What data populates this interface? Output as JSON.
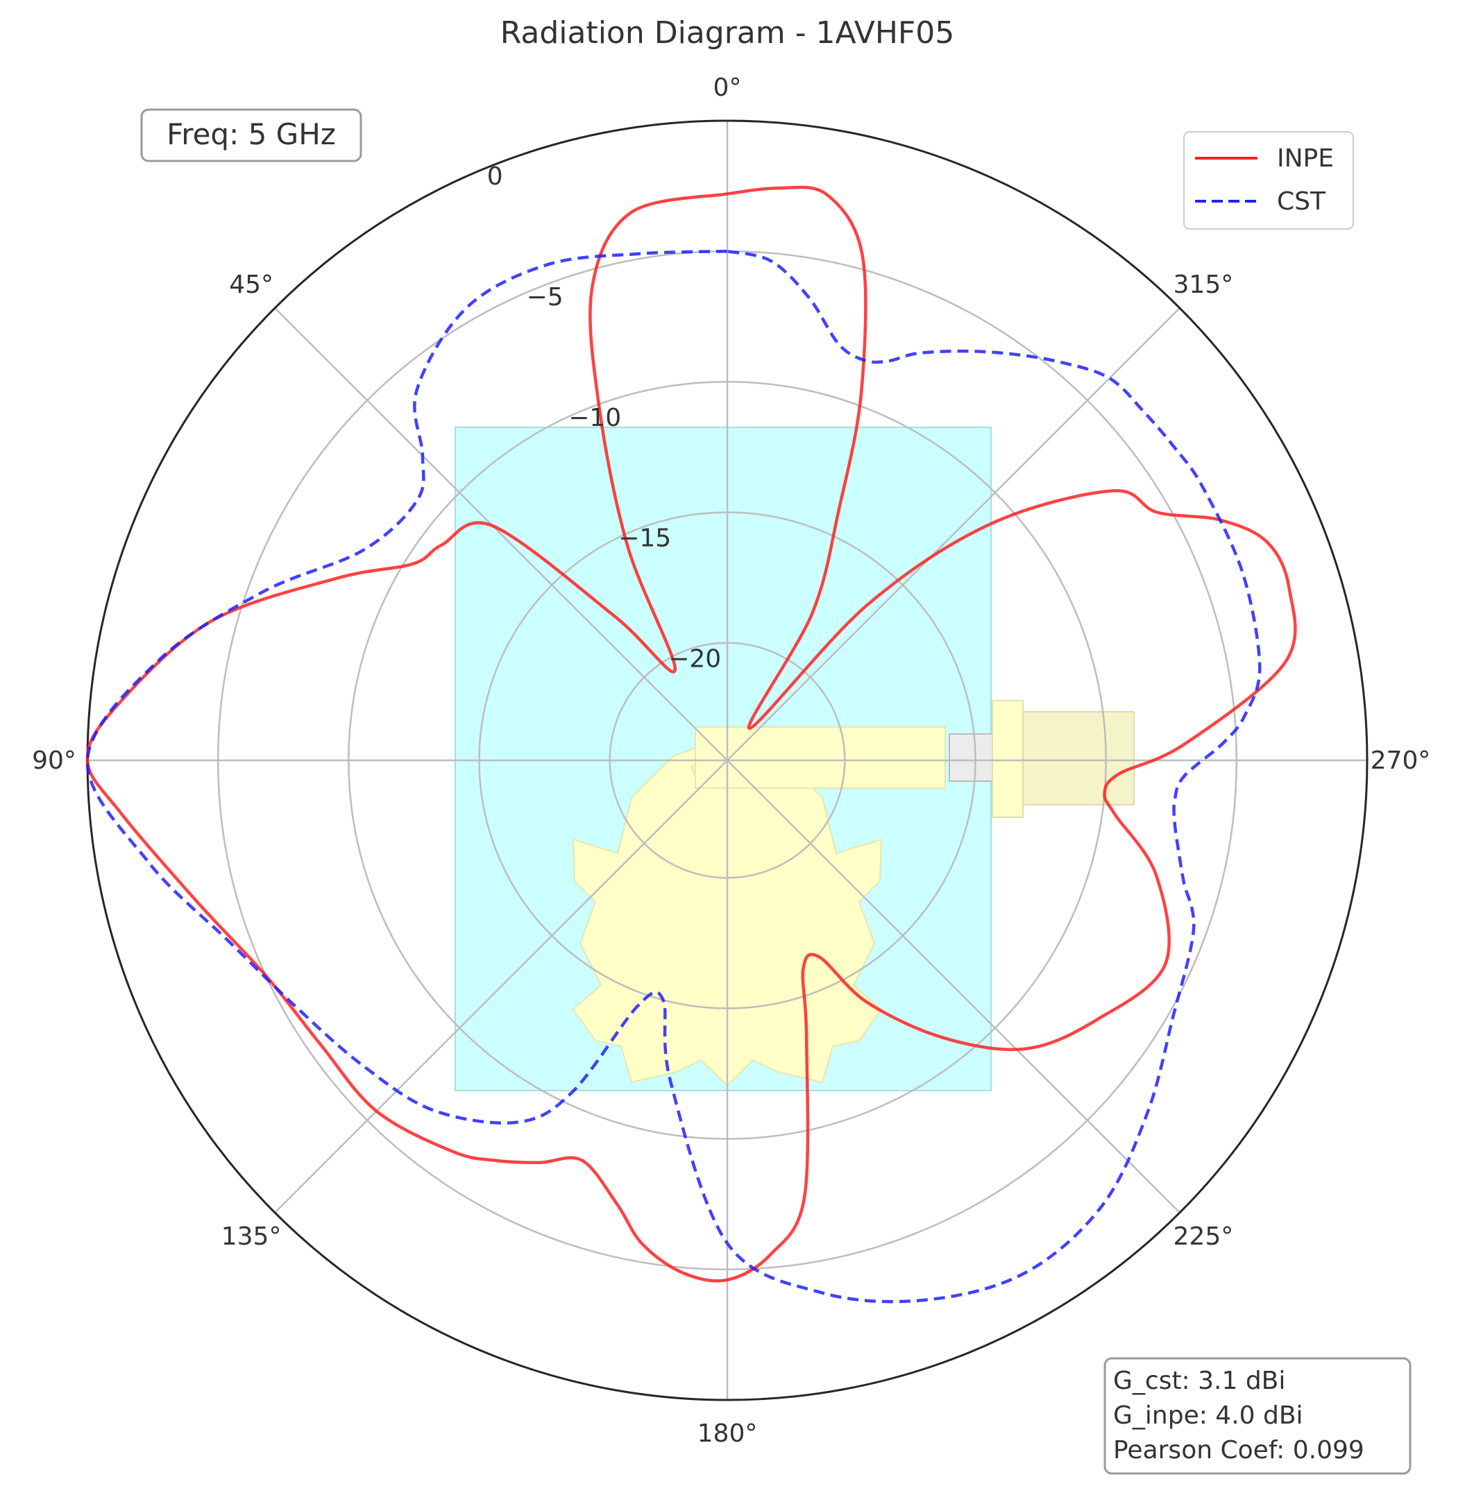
{
  "chart_data": {
    "type": "polar-line",
    "title": "Radiation Diagram - 1AVHF05",
    "theta_direction": "counterclockwise",
    "theta_zero": "top",
    "theta_ticks": [
      "0°",
      "45°",
      "90°",
      "135°",
      "180°",
      "225°",
      "270°",
      "315°"
    ],
    "theta_tick_values": [
      0,
      45,
      90,
      135,
      180,
      225,
      270,
      315
    ],
    "r_range": [
      -24.5,
      0
    ],
    "r_ticks": [
      {
        "value": 0,
        "label": "0"
      },
      {
        "value": -5,
        "label": "−5"
      },
      {
        "value": -10,
        "label": "−10"
      },
      {
        "value": -15,
        "label": "−15"
      },
      {
        "value": -20,
        "label": "−20"
      }
    ],
    "grid": true,
    "legend_position": "top-right",
    "series": [
      {
        "name": "INPE",
        "color": "#ff2020",
        "style": "solid",
        "theta": [
          0,
          10,
          16,
          20,
          25,
          30,
          38,
          45,
          53,
          58,
          65,
          75,
          85,
          90,
          95,
          105,
          115,
          125,
          135,
          145,
          150,
          155,
          160,
          166,
          170,
          175,
          180,
          185,
          190,
          196,
          200,
          205,
          210,
          218,
          226,
          235,
          245,
          255,
          262,
          265,
          268,
          272,
          280,
          287,
          292,
          296,
          300,
          305,
          312,
          318,
          325,
          330,
          336,
          340,
          345,
          350,
          355,
          360
        ],
        "values": [
          -2.8,
          -3.2,
          -5.7,
          -10.2,
          -15.5,
          -20.5,
          -17.5,
          -11.8,
          -10.8,
          -10.3,
          -8.0,
          -4.0,
          -1.0,
          0,
          -1.2,
          -3.5,
          -5.0,
          -5.5,
          -5.5,
          -6.2,
          -6.8,
          -7.5,
          -8.2,
          -7.0,
          -5.7,
          -4.8,
          -4.6,
          -5.5,
          -7.5,
          -13.5,
          -16.0,
          -16.2,
          -13.8,
          -11.0,
          -8.6,
          -7.2,
          -6.0,
          -7.5,
          -9.5,
          -10.0,
          -9.5,
          -7.0,
          -2.8,
          -2.0,
          -2.2,
          -3.5,
          -5.5,
          -6.5,
          -11.0,
          -16.5,
          -23.0,
          -18.0,
          -14.0,
          -9.5,
          -4.5,
          -2.5,
          -2.5,
          -2.8
        ]
      },
      {
        "name": "CST",
        "color": "#2020ff",
        "style": "dashed",
        "theta": [
          0,
          10,
          20,
          30,
          40,
          45,
          50,
          60,
          70,
          80,
          90,
          100,
          110,
          120,
          130,
          140,
          150,
          155,
          160,
          165,
          170,
          180,
          190,
          200,
          210,
          220,
          230,
          240,
          250,
          255,
          258,
          262,
          265,
          268,
          272,
          275,
          280,
          290,
          300,
          305,
          310,
          315,
          320,
          325,
          330,
          335,
          338,
          341,
          345,
          350,
          355,
          360
        ],
        "values": [
          -5.0,
          -4.8,
          -4.3,
          -4.5,
          -6.0,
          -8.0,
          -9.0,
          -8.4,
          -5.6,
          -2.4,
          0.0,
          -2.0,
          -4.2,
          -5.5,
          -6.3,
          -7.0,
          -8.5,
          -10.5,
          -14.5,
          -15.0,
          -12.0,
          -6.0,
          -3.8,
          -2.5,
          -1.8,
          -2.2,
          -3.5,
          -4.8,
          -5.5,
          -6.4,
          -6.8,
          -7.2,
          -7.3,
          -7.0,
          -5.5,
          -4.6,
          -3.8,
          -3.5,
          -3.5,
          -3.6,
          -3.7,
          -3.8,
          -4.6,
          -5.5,
          -6.4,
          -7.3,
          -8.0,
          -8.3,
          -8.0,
          -6.5,
          -5.3,
          -5.0
        ]
      }
    ]
  },
  "annotations": {
    "freq_label": "Freq: 5 GHz",
    "stats": [
      "G_cst: 3.1 dBi",
      "G_inpe: 4.0 dBi",
      "Pearson Coef: 0.099"
    ]
  }
}
